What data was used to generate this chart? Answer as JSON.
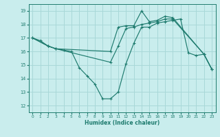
{
  "xlabel": "Humidex (Indice chaleur)",
  "bg_color": "#c9eded",
  "grid_color": "#a8d8d8",
  "line_color": "#1e7b6e",
  "xlim": [
    -0.5,
    23.5
  ],
  "ylim": [
    11.5,
    19.5
  ],
  "xticks": [
    0,
    1,
    2,
    3,
    4,
    5,
    6,
    7,
    8,
    9,
    10,
    11,
    12,
    13,
    14,
    15,
    16,
    17,
    18,
    19,
    20,
    21,
    22,
    23
  ],
  "yticks": [
    12,
    13,
    14,
    15,
    16,
    17,
    18,
    19
  ],
  "line1_x": [
    0,
    1,
    2,
    3,
    4,
    5,
    6,
    7,
    8,
    9,
    10,
    11,
    12,
    13,
    14,
    15,
    16,
    17,
    18,
    19,
    20,
    21,
    22,
    23
  ],
  "line1_y": [
    17.0,
    16.8,
    16.4,
    16.2,
    16.1,
    16.0,
    14.8,
    14.2,
    13.6,
    12.5,
    12.5,
    13.0,
    15.1,
    16.6,
    17.8,
    17.8,
    18.1,
    18.2,
    18.3,
    18.4,
    15.9,
    15.7,
    15.8,
    14.7
  ],
  "line2_x": [
    0,
    2,
    3,
    10,
    11,
    12,
    13,
    14,
    15,
    16,
    17,
    18,
    22,
    23
  ],
  "line2_y": [
    17.0,
    16.4,
    16.2,
    16.0,
    17.8,
    17.9,
    17.9,
    19.0,
    18.2,
    18.3,
    18.6,
    18.5,
    15.8,
    14.7
  ],
  "line3_x": [
    0,
    2,
    3,
    10,
    11,
    12,
    13,
    14,
    15,
    16,
    17,
    18,
    22,
    23
  ],
  "line3_y": [
    17.0,
    16.4,
    16.2,
    15.2,
    16.4,
    17.7,
    17.8,
    18.0,
    18.1,
    18.2,
    18.4,
    18.4,
    15.8,
    14.7
  ]
}
